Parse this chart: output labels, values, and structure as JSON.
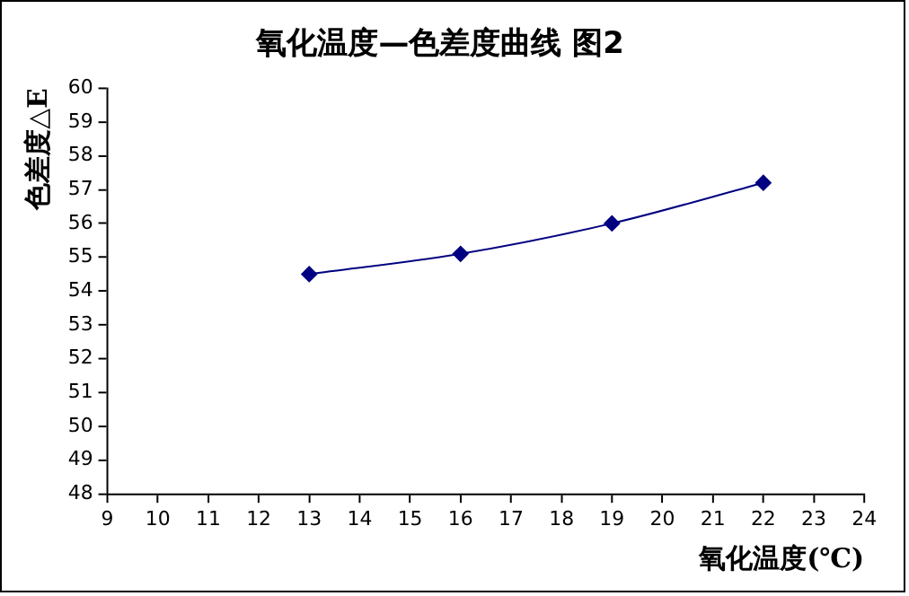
{
  "chart_data": {
    "type": "line",
    "title": "氧化温度—色差度曲线 图2",
    "xlabel": "氧化温度(℃)",
    "ylabel": "色差度△E",
    "x": [
      13,
      16,
      19,
      22
    ],
    "series": [
      {
        "color": "#000080",
        "values": [
          54.5,
          55.1,
          56.0,
          57.2
        ]
      }
    ],
    "xlim": [
      9,
      24
    ],
    "xticks": [
      9,
      10,
      11,
      12,
      13,
      14,
      15,
      16,
      17,
      18,
      19,
      20,
      21,
      22,
      23,
      24
    ],
    "ylim": [
      48,
      60
    ],
    "yticks": [
      48,
      49,
      50,
      51,
      52,
      53,
      54,
      55,
      56,
      57,
      58,
      59,
      60
    ],
    "grid": false,
    "legend": false,
    "marker": "diamond",
    "line_style": "solid"
  }
}
